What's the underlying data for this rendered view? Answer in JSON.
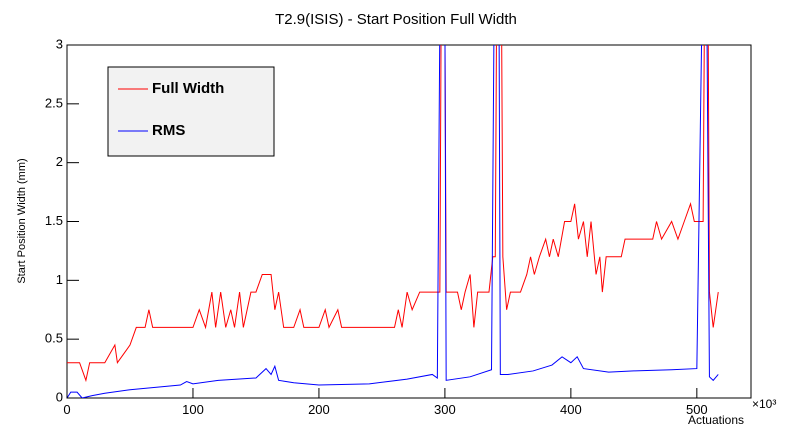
{
  "chart_data": {
    "type": "line",
    "title": "T2.9(ISIS) - Start Position Full Width",
    "y_label": "Start Position Width (mm)",
    "x_label": "Actuations",
    "x_multiplier": "×10³",
    "xlim": [
      0,
      543
    ],
    "xticks": [
      0,
      100,
      200,
      300,
      400,
      500
    ],
    "ylim": [
      0,
      3
    ],
    "yticks": [
      0,
      0.5,
      1,
      1.5,
      2,
      2.5,
      3
    ],
    "legend": "top-left",
    "series": [
      {
        "name": "Full Width",
        "color": "#ff0000",
        "x": [
          0,
          10,
          15,
          18,
          30,
          38,
          40,
          50,
          55,
          62,
          65,
          68,
          100,
          105,
          110,
          115,
          118,
          122,
          126,
          130,
          133,
          137,
          140,
          143,
          146,
          150,
          155,
          162,
          165,
          168,
          172,
          180,
          185,
          188,
          200,
          205,
          208,
          215,
          218,
          260,
          263,
          266,
          270,
          274,
          280,
          296,
          297,
          300,
          301,
          310,
          313,
          316,
          320,
          323,
          326,
          335,
          338,
          340,
          341,
          345,
          346,
          349,
          352,
          360,
          365,
          368,
          371,
          375,
          380,
          383,
          386,
          390,
          395,
          400,
          403,
          406,
          410,
          413,
          416,
          420,
          423,
          425,
          428,
          440,
          443,
          465,
          468,
          472,
          480,
          485,
          490,
          495,
          498,
          505,
          506,
          509,
          510,
          513,
          517
        ],
        "values": [
          0.3,
          0.3,
          0.15,
          0.3,
          0.3,
          0.45,
          0.3,
          0.45,
          0.6,
          0.6,
          0.75,
          0.6,
          0.6,
          0.75,
          0.6,
          0.9,
          0.6,
          0.9,
          0.6,
          0.75,
          0.6,
          0.9,
          0.6,
          0.75,
          0.9,
          0.9,
          1.05,
          1.05,
          0.75,
          0.9,
          0.6,
          0.6,
          0.75,
          0.6,
          0.6,
          0.75,
          0.6,
          0.75,
          0.6,
          0.6,
          0.75,
          0.6,
          0.9,
          0.75,
          0.9,
          0.9,
          3.2,
          3.2,
          0.9,
          0.9,
          0.75,
          0.9,
          1.05,
          0.6,
          0.9,
          0.9,
          1.2,
          1.2,
          3.2,
          3.2,
          1.2,
          0.75,
          0.9,
          0.9,
          1.05,
          1.2,
          1.05,
          1.2,
          1.35,
          1.2,
          1.35,
          1.2,
          1.5,
          1.5,
          1.65,
          1.35,
          1.5,
          1.2,
          1.5,
          1.05,
          1.2,
          0.9,
          1.2,
          1.2,
          1.35,
          1.35,
          1.5,
          1.35,
          1.5,
          1.35,
          1.5,
          1.65,
          1.5,
          1.5,
          3.2,
          3.2,
          0.9,
          0.6,
          0.9
        ]
      },
      {
        "name": "RMS",
        "color": "#0000ff",
        "x": [
          0,
          3,
          8,
          12,
          20,
          30,
          50,
          70,
          90,
          95,
          100,
          120,
          150,
          158,
          162,
          165,
          168,
          180,
          200,
          240,
          270,
          290,
          294,
          296,
          300,
          301,
          320,
          337,
          339,
          343,
          344,
          350,
          370,
          385,
          393,
          400,
          405,
          410,
          430,
          450,
          480,
          500,
          504,
          508,
          510,
          513,
          517
        ],
        "values": [
          0,
          0.05,
          0.05,
          0,
          0.02,
          0.04,
          0.07,
          0.09,
          0.11,
          0.14,
          0.12,
          0.15,
          0.17,
          0.25,
          0.2,
          0.27,
          0.15,
          0.13,
          0.11,
          0.12,
          0.16,
          0.2,
          0.17,
          3.2,
          3.2,
          0.15,
          0.18,
          0.24,
          3.2,
          3.2,
          0.2,
          0.2,
          0.23,
          0.28,
          0.35,
          0.3,
          0.35,
          0.25,
          0.22,
          0.23,
          0.24,
          0.25,
          3.2,
          3.2,
          0.18,
          0.15,
          0.2
        ]
      }
    ]
  }
}
